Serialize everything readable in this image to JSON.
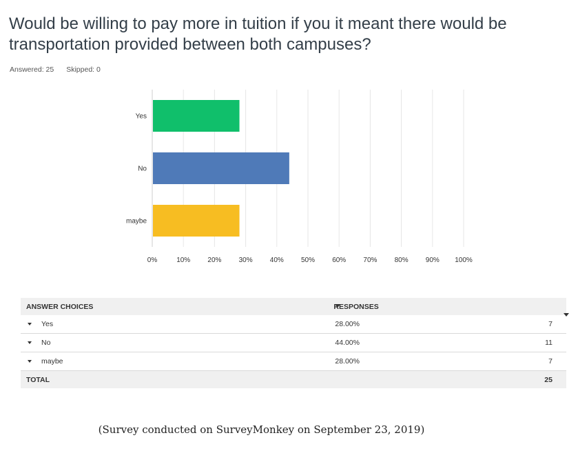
{
  "question": "Would be willing to pay more in tuition if you it meant there would be transportation provided between both campuses?",
  "answered": "Answered: 25",
  "skipped": "Skipped: 0",
  "chart_data": {
    "type": "bar",
    "orientation": "horizontal",
    "categories": [
      "Yes",
      "No",
      "maybe"
    ],
    "values": [
      28,
      44,
      28
    ],
    "colors": [
      "#10bf6b",
      "#4f7ab8",
      "#f7bd22"
    ],
    "xlim": [
      0,
      100
    ],
    "ticks": [
      "0%",
      "10%",
      "20%",
      "30%",
      "40%",
      "50%",
      "60%",
      "70%",
      "80%",
      "90%",
      "100%"
    ],
    "tick_values": [
      0,
      10,
      20,
      30,
      40,
      50,
      60,
      70,
      80,
      90,
      100
    ],
    "grid": true
  },
  "table": {
    "header_choices": "ANSWER CHOICES",
    "header_responses": "RESPONSES",
    "rows": [
      {
        "choice": "Yes",
        "percent": "28.00%",
        "count": "7"
      },
      {
        "choice": "No",
        "percent": "44.00%",
        "count": "11"
      },
      {
        "choice": "maybe",
        "percent": "28.00%",
        "count": "7"
      }
    ],
    "total_label": "TOTAL",
    "total_count": "25"
  },
  "caption": "(Survey conducted on SurveyMonkey on September 23, 2019)"
}
